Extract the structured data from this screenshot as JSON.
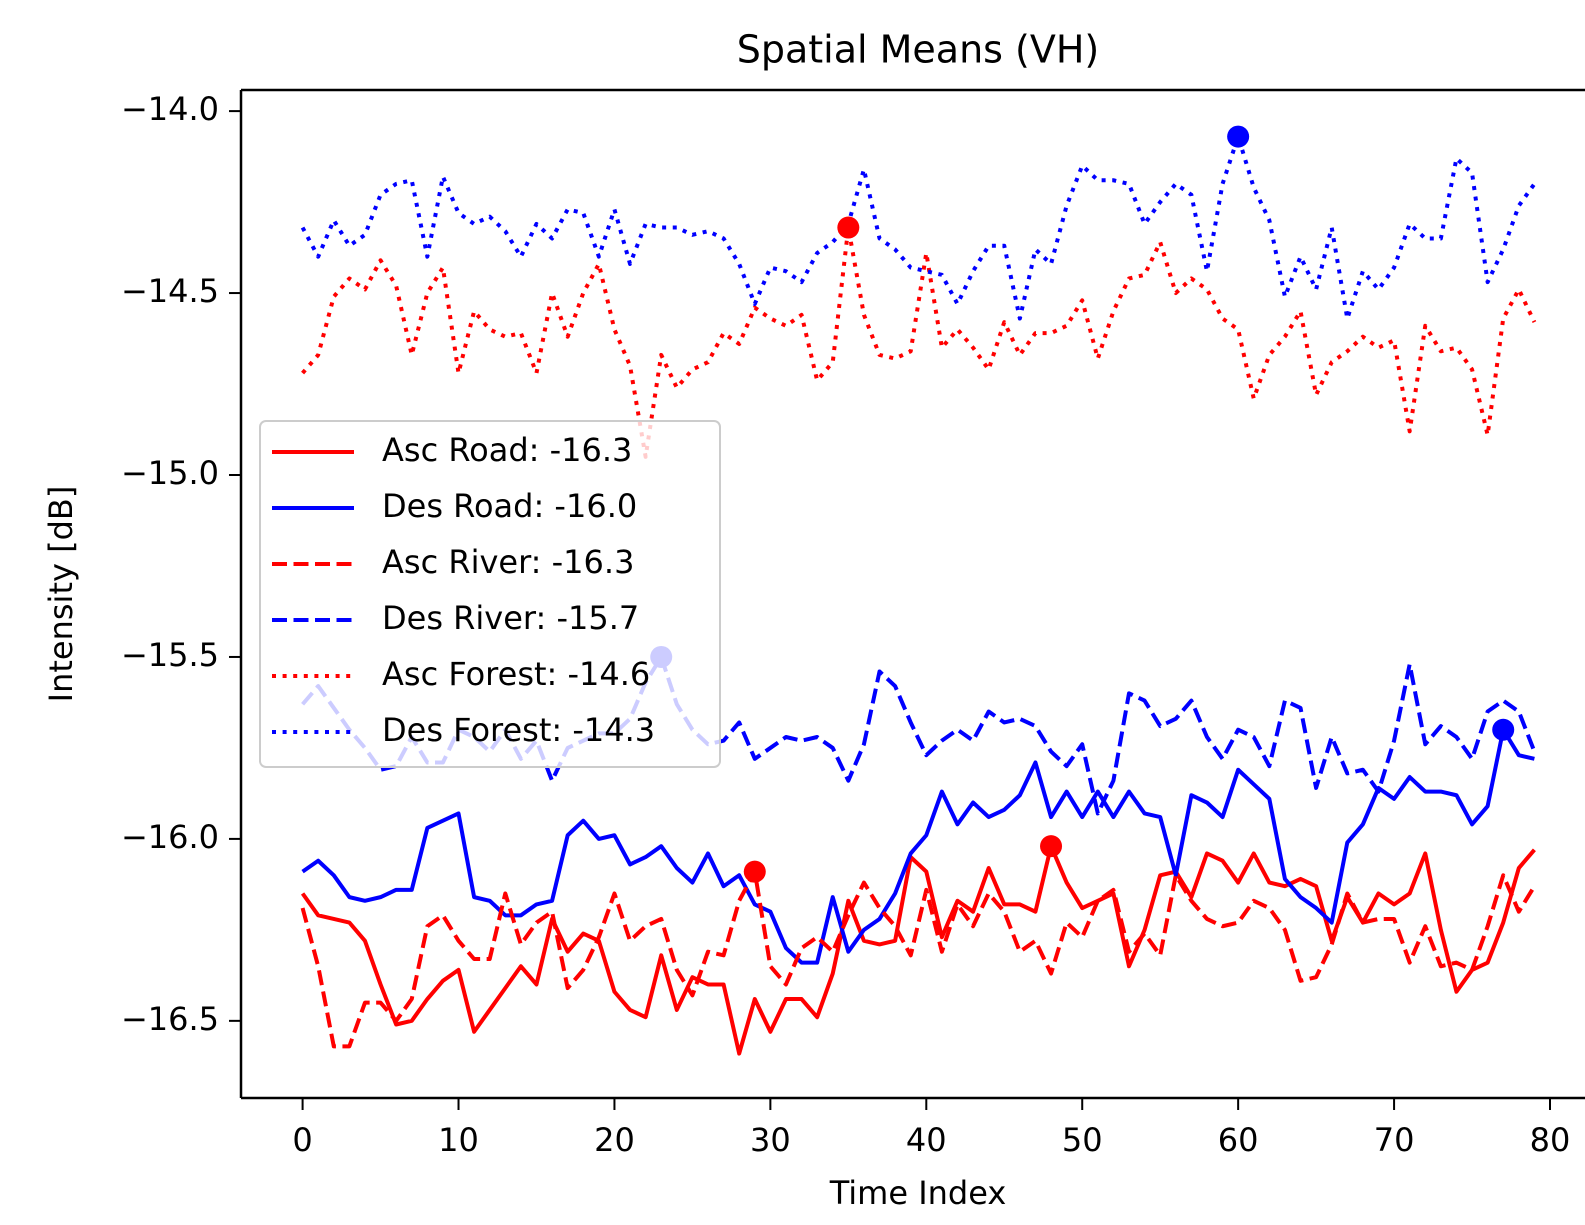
{
  "chart_data": {
    "type": "line",
    "title": "Spatial Means (VH)",
    "x_label": "Time Index",
    "y_label": "Intensity [dB]",
    "x": [
      0,
      1,
      2,
      3,
      4,
      5,
      6,
      7,
      8,
      9,
      10,
      11,
      12,
      13,
      14,
      15,
      16,
      17,
      18,
      19,
      20,
      21,
      22,
      23,
      24,
      25,
      26,
      27,
      28,
      29,
      30,
      31,
      32,
      33,
      34,
      35,
      36,
      37,
      38,
      39,
      40,
      41,
      42,
      43,
      44,
      45,
      46,
      47,
      48,
      49,
      50,
      51,
      52,
      53,
      54,
      55,
      56,
      57,
      58,
      59,
      60,
      61,
      62,
      63,
      64,
      65,
      66,
      67,
      68,
      69,
      70,
      71,
      72,
      73,
      74,
      75,
      76,
      77,
      78,
      79
    ],
    "xlim": [
      -3.95,
      82.95
    ],
    "xticks": [
      0,
      10,
      20,
      30,
      40,
      50,
      60,
      70,
      80
    ],
    "ylim": [
      -16.712,
      -13.942
    ],
    "yticks": [
      {
        "value": -16.5,
        "label": "−16.5"
      },
      {
        "value": -16.0,
        "label": "−16.0"
      },
      {
        "value": -15.5,
        "label": "−15.5"
      },
      {
        "value": -15.0,
        "label": "−15.0"
      },
      {
        "value": -14.5,
        "label": "−14.5"
      },
      {
        "value": -14.0,
        "label": "−14.0"
      }
    ],
    "legend": "center left",
    "series": [
      {
        "name": "Asc Road: -16.3",
        "color": "red",
        "dash": "solid",
        "highlight_index": 48,
        "values": [
          -16.15,
          -16.21,
          -16.22,
          -16.23,
          -16.28,
          -16.4,
          -16.51,
          -16.5,
          -16.44,
          -16.39,
          -16.36,
          -16.53,
          -16.47,
          -16.41,
          -16.35,
          -16.4,
          -16.22,
          -16.31,
          -16.26,
          -16.28,
          -16.42,
          -16.47,
          -16.49,
          -16.32,
          -16.47,
          -16.38,
          -16.4,
          -16.4,
          -16.59,
          -16.44,
          -16.53,
          -16.44,
          -16.44,
          -16.49,
          -16.37,
          -16.17,
          -16.28,
          -16.29,
          -16.28,
          -16.05,
          -16.09,
          -16.27,
          -16.17,
          -16.2,
          -16.08,
          -16.18,
          -16.18,
          -16.2,
          -16.02,
          -16.12,
          -16.19,
          -16.17,
          -16.15,
          -16.35,
          -16.25,
          -16.1,
          -16.09,
          -16.16,
          -16.04,
          -16.06,
          -16.12,
          -16.04,
          -16.12,
          -16.13,
          -16.11,
          -16.13,
          -16.28,
          -16.16,
          -16.23,
          -16.15,
          -16.18,
          -16.15,
          -16.04,
          -16.25,
          -16.42,
          -16.36,
          -16.34,
          -16.23,
          -16.08,
          -16.03
        ]
      },
      {
        "name": "Des Road: -16.0",
        "color": "blue",
        "dash": "solid",
        "highlight_index": 77,
        "values": [
          -16.09,
          -16.06,
          -16.1,
          -16.16,
          -16.17,
          -16.16,
          -16.14,
          -16.14,
          -15.97,
          -15.95,
          -15.93,
          -16.16,
          -16.17,
          -16.21,
          -16.21,
          -16.18,
          -16.17,
          -15.99,
          -15.95,
          -16.0,
          -15.99,
          -16.07,
          -16.05,
          -16.02,
          -16.08,
          -16.12,
          -16.04,
          -16.13,
          -16.1,
          -16.18,
          -16.2,
          -16.3,
          -16.34,
          -16.34,
          -16.16,
          -16.31,
          -16.25,
          -16.22,
          -16.15,
          -16.04,
          -15.99,
          -15.87,
          -15.96,
          -15.9,
          -15.94,
          -15.92,
          -15.88,
          -15.79,
          -15.94,
          -15.87,
          -15.94,
          -15.87,
          -15.94,
          -15.87,
          -15.93,
          -15.94,
          -16.1,
          -15.88,
          -15.9,
          -15.94,
          -15.81,
          -15.85,
          -15.89,
          -16.11,
          -16.16,
          -16.19,
          -16.23,
          -16.01,
          -15.96,
          -15.86,
          -15.89,
          -15.83,
          -15.87,
          -15.87,
          -15.88,
          -15.96,
          -15.91,
          -15.7,
          -15.77,
          -15.78
        ]
      },
      {
        "name": "Asc River: -16.3",
        "color": "red",
        "dash": "dashed",
        "highlight_index": 29,
        "values": [
          -16.19,
          -16.35,
          -16.57,
          -16.57,
          -16.45,
          -16.45,
          -16.5,
          -16.44,
          -16.24,
          -16.21,
          -16.28,
          -16.33,
          -16.33,
          -16.15,
          -16.29,
          -16.23,
          -16.2,
          -16.41,
          -16.36,
          -16.27,
          -16.15,
          -16.28,
          -16.24,
          -16.22,
          -16.36,
          -16.43,
          -16.31,
          -16.32,
          -16.17,
          -16.09,
          -16.35,
          -16.4,
          -16.3,
          -16.27,
          -16.31,
          -16.21,
          -16.12,
          -16.19,
          -16.24,
          -16.32,
          -16.14,
          -16.31,
          -16.18,
          -16.24,
          -16.15,
          -16.2,
          -16.31,
          -16.28,
          -16.37,
          -16.23,
          -16.27,
          -16.17,
          -16.14,
          -16.31,
          -16.26,
          -16.32,
          -16.1,
          -16.17,
          -16.22,
          -16.24,
          -16.23,
          -16.17,
          -16.19,
          -16.25,
          -16.39,
          -16.38,
          -16.29,
          -16.15,
          -16.23,
          -16.22,
          -16.22,
          -16.34,
          -16.24,
          -16.35,
          -16.34,
          -16.36,
          -16.24,
          -16.1,
          -16.2,
          -16.13
        ]
      },
      {
        "name": "Des River: -15.7",
        "color": "blue",
        "dash": "dashed",
        "highlight_index": 23,
        "values": [
          -15.63,
          -15.58,
          -15.64,
          -15.7,
          -15.75,
          -15.81,
          -15.8,
          -15.72,
          -15.79,
          -15.79,
          -15.7,
          -15.72,
          -15.76,
          -15.7,
          -15.78,
          -15.73,
          -15.84,
          -15.75,
          -15.73,
          -15.71,
          -15.71,
          -15.67,
          -15.57,
          -15.5,
          -15.63,
          -15.7,
          -15.74,
          -15.73,
          -15.68,
          -15.78,
          -15.75,
          -15.72,
          -15.73,
          -15.72,
          -15.75,
          -15.84,
          -15.74,
          -15.54,
          -15.58,
          -15.68,
          -15.77,
          -15.73,
          -15.7,
          -15.73,
          -15.65,
          -15.68,
          -15.67,
          -15.69,
          -15.76,
          -15.8,
          -15.74,
          -15.93,
          -15.84,
          -15.6,
          -15.62,
          -15.69,
          -15.67,
          -15.62,
          -15.72,
          -15.78,
          -15.7,
          -15.72,
          -15.8,
          -15.62,
          -15.64,
          -15.86,
          -15.72,
          -15.82,
          -15.81,
          -15.87,
          -15.73,
          -15.52,
          -15.74,
          -15.69,
          -15.72,
          -15.78,
          -15.65,
          -15.62,
          -15.65,
          -15.76
        ]
      },
      {
        "name": "Asc Forest: -14.6",
        "color": "red",
        "dash": "dotted",
        "highlight_index": 35,
        "values": [
          -14.72,
          -14.67,
          -14.51,
          -14.46,
          -14.49,
          -14.41,
          -14.48,
          -14.67,
          -14.5,
          -14.43,
          -14.72,
          -14.55,
          -14.6,
          -14.62,
          -14.61,
          -14.72,
          -14.5,
          -14.62,
          -14.5,
          -14.42,
          -14.6,
          -14.7,
          -14.95,
          -14.67,
          -14.76,
          -14.71,
          -14.69,
          -14.61,
          -14.64,
          -14.54,
          -14.57,
          -14.59,
          -14.56,
          -14.74,
          -14.69,
          -14.32,
          -14.56,
          -14.67,
          -14.68,
          -14.66,
          -14.39,
          -14.65,
          -14.6,
          -14.65,
          -14.71,
          -14.58,
          -14.67,
          -14.61,
          -14.61,
          -14.59,
          -14.52,
          -14.68,
          -14.55,
          -14.46,
          -14.45,
          -14.36,
          -14.5,
          -14.46,
          -14.49,
          -14.57,
          -14.6,
          -14.79,
          -14.67,
          -14.62,
          -14.55,
          -14.78,
          -14.69,
          -14.66,
          -14.62,
          -14.65,
          -14.63,
          -14.88,
          -14.59,
          -14.66,
          -14.65,
          -14.71,
          -14.89,
          -14.57,
          -14.49,
          -14.58
        ]
      },
      {
        "name": "Des Forest: -14.3",
        "color": "blue",
        "dash": "dotted",
        "highlight_index": 60,
        "values": [
          -14.32,
          -14.4,
          -14.3,
          -14.37,
          -14.34,
          -14.23,
          -14.2,
          -14.19,
          -14.4,
          -14.18,
          -14.28,
          -14.31,
          -14.29,
          -14.33,
          -14.4,
          -14.31,
          -14.35,
          -14.27,
          -14.28,
          -14.4,
          -14.27,
          -14.42,
          -14.31,
          -14.32,
          -14.32,
          -14.34,
          -14.33,
          -14.35,
          -14.42,
          -14.53,
          -14.43,
          -14.44,
          -14.47,
          -14.39,
          -14.36,
          -14.31,
          -14.16,
          -14.35,
          -14.38,
          -14.43,
          -14.44,
          -14.45,
          -14.53,
          -14.44,
          -14.37,
          -14.37,
          -14.57,
          -14.38,
          -14.42,
          -14.26,
          -14.15,
          -14.19,
          -14.19,
          -14.2,
          -14.31,
          -14.25,
          -14.2,
          -14.23,
          -14.44,
          -14.2,
          -14.07,
          -14.21,
          -14.3,
          -14.51,
          -14.4,
          -14.49,
          -14.32,
          -14.57,
          -14.44,
          -14.49,
          -14.43,
          -14.31,
          -14.35,
          -14.35,
          -14.13,
          -14.17,
          -14.47,
          -14.38,
          -14.26,
          -14.2
        ]
      }
    ]
  }
}
